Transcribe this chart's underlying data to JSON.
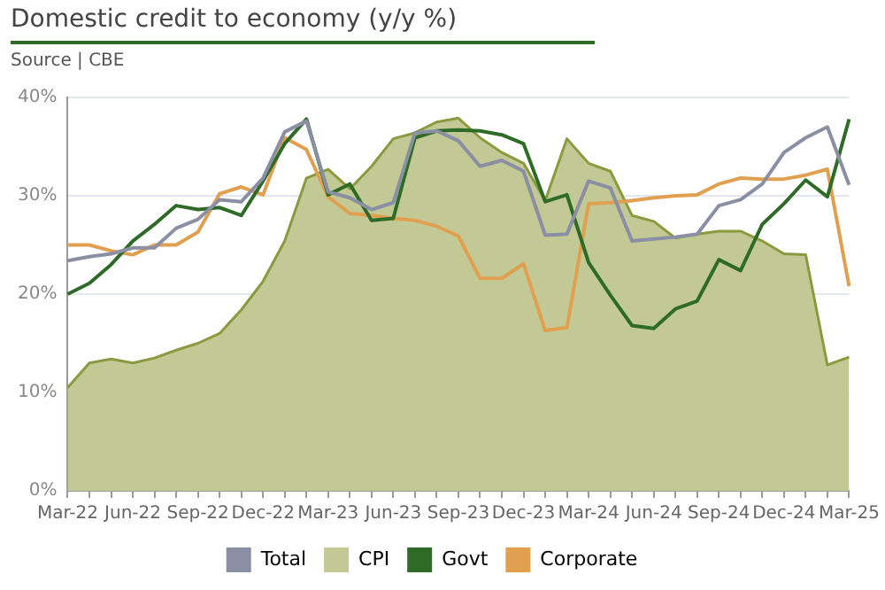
{
  "chart_data": {
    "type": "line",
    "title": "Domestic credit to economy (y/y %)",
    "subtitle": "Source | CBE",
    "categories": [
      "Mar-22",
      null,
      null,
      "Jun-22",
      null,
      null,
      "Sep-22",
      null,
      null,
      "Dec-22",
      null,
      null,
      "Mar-23",
      null,
      null,
      "Jun-23",
      null,
      null,
      "Sep-23",
      null,
      null,
      "Dec-23",
      null,
      null,
      "Mar-24",
      null,
      null,
      "Jun-24",
      null,
      null,
      "Sep-24",
      null,
      null,
      "Dec-24",
      null,
      null,
      "Mar-25"
    ],
    "series": [
      {
        "name": "Total",
        "type": "line",
        "color": "#8a8fa3",
        "values": [
          23.4,
          23.8,
          24.1,
          24.7,
          24.7,
          26.7,
          27.6,
          29.6,
          29.4,
          31.8,
          36.5,
          37.6,
          30.4,
          29.8,
          28.6,
          29.3,
          36.4,
          36.6,
          35.6,
          33.0,
          33.6,
          32.5,
          26.0,
          26.1,
          31.5,
          30.8,
          25.4,
          25.6,
          25.8,
          26.1,
          29.0,
          29.6,
          31.2,
          34.4,
          35.9,
          37.0,
          31.1
        ]
      },
      {
        "name": "CPI",
        "type": "area",
        "color": "#c2c994",
        "values": [
          10.5,
          13.0,
          13.4,
          13.0,
          13.5,
          14.3,
          15.0,
          16.0,
          18.4,
          21.3,
          25.4,
          31.8,
          32.7,
          30.7,
          33.0,
          35.8,
          36.4,
          37.5,
          37.9,
          35.9,
          34.4,
          33.3,
          29.5,
          35.8,
          33.3,
          32.5,
          28.0,
          27.4,
          25.7,
          26.1,
          26.4,
          26.4,
          25.4,
          24.1,
          24.0,
          12.8,
          13.6
        ]
      },
      {
        "name": "Govt",
        "type": "line",
        "color": "#2e6b26",
        "values": [
          20.0,
          21.1,
          23.0,
          25.4,
          27.1,
          29.0,
          28.6,
          28.8,
          28.0,
          31.5,
          35.3,
          37.8,
          30.1,
          31.2,
          27.5,
          27.7,
          35.9,
          36.6,
          36.7,
          36.6,
          36.2,
          35.3,
          29.4,
          30.1,
          23.2,
          19.9,
          16.8,
          16.5,
          18.5,
          19.3,
          23.5,
          22.4,
          27.1,
          29.2,
          31.6,
          29.9,
          37.8
        ]
      },
      {
        "name": "Corporate",
        "type": "line",
        "color": "#e0a050",
        "values": [
          25.0,
          25.0,
          24.4,
          24.0,
          25.0,
          25.0,
          26.3,
          30.2,
          30.9,
          30.1,
          35.9,
          34.7,
          29.9,
          28.2,
          28.0,
          27.7,
          27.5,
          26.9,
          25.9,
          21.6,
          21.6,
          23.1,
          16.3,
          16.6,
          29.2,
          29.3,
          29.5,
          29.8,
          30.0,
          30.1,
          31.2,
          31.8,
          31.7,
          31.7,
          32.1,
          32.7,
          20.8
        ]
      }
    ],
    "ylim": [
      0,
      40
    ],
    "yticks": [
      {
        "value": 0,
        "label": "0%"
      },
      {
        "value": 10,
        "label": "10%"
      },
      {
        "value": 20,
        "label": "20%"
      },
      {
        "value": 30,
        "label": "30%"
      },
      {
        "value": 40,
        "label": "40%"
      }
    ],
    "grid": "y",
    "legend": "bottom",
    "marker": "none"
  }
}
